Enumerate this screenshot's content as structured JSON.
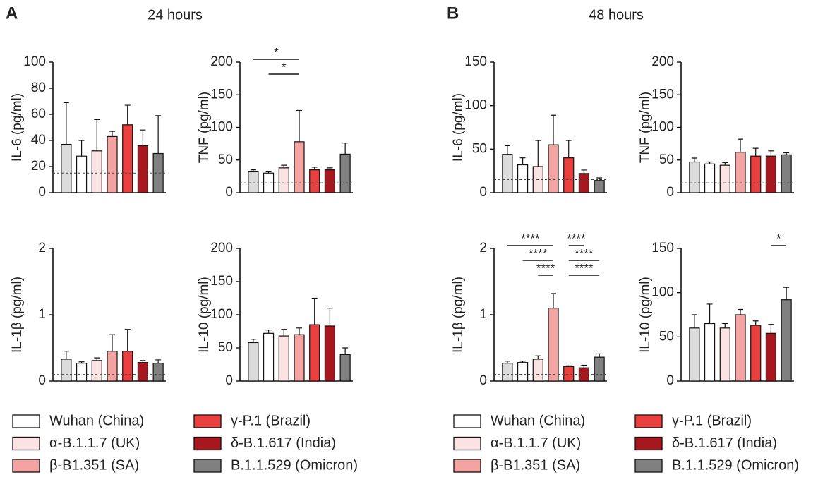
{
  "chart_data": [
    {
      "type": "bar",
      "panel_label": "A",
      "title": "24 hours",
      "bar_colors": [
        "#dcdcdc",
        "#ffffff",
        "#fbe3e3",
        "#f4a3a3",
        "#e8403f",
        "#a8171d",
        "#808080"
      ],
      "legend": [
        "Wuhan (China)",
        "α-B.1.1.7 (UK)",
        "β-B1.351 (SA)",
        "γ-P.1 (Brazil)",
        "δ-B.1.617 (India)",
        "B.1.1.529 (Omicron)"
      ],
      "subplots": [
        {
          "ylabel": "IL-6 (pg/ml)",
          "ylim": [
            0,
            100
          ],
          "yticks": [
            0,
            20,
            40,
            60,
            80,
            100
          ],
          "threshold": 15,
          "values": [
            37,
            28,
            32,
            43,
            52,
            36,
            30
          ],
          "errors": [
            32,
            12,
            24,
            4,
            15,
            12,
            29
          ],
          "annotations": []
        },
        {
          "ylabel": "TNF (pg/ml)",
          "ylim": [
            0,
            200
          ],
          "yticks": [
            0,
            50,
            100,
            150,
            200
          ],
          "threshold": 15,
          "values": [
            32,
            30,
            38,
            78,
            35,
            35,
            59
          ],
          "errors": [
            3,
            2,
            4,
            48,
            4,
            3,
            17
          ],
          "annotations": [
            {
              "label": "*",
              "from": 0,
              "to": 3
            },
            {
              "label": "*",
              "from": 1,
              "to": 3
            }
          ]
        },
        {
          "ylabel": "IL-1β (pg/ml)",
          "ylim": [
            0,
            2
          ],
          "yticks": [
            0,
            1,
            2
          ],
          "threshold": 0.1,
          "values": [
            0.33,
            0.27,
            0.31,
            0.45,
            0.45,
            0.28,
            0.27
          ],
          "errors": [
            0.12,
            0.02,
            0.04,
            0.25,
            0.33,
            0.03,
            0.05
          ],
          "annotations": []
        },
        {
          "ylabel": "IL-10 (pg/ml)",
          "ylim": [
            0,
            200
          ],
          "yticks": [
            0,
            50,
            100,
            150,
            200
          ],
          "values": [
            58,
            72,
            68,
            70,
            85,
            83,
            40
          ],
          "errors": [
            5,
            5,
            10,
            10,
            40,
            27,
            10
          ],
          "annotations": []
        }
      ]
    },
    {
      "type": "bar",
      "panel_label": "B",
      "title": "48 hours",
      "bar_colors": [
        "#dcdcdc",
        "#ffffff",
        "#fbe3e3",
        "#f4a3a3",
        "#e8403f",
        "#a8171d",
        "#808080"
      ],
      "legend": [
        "Wuhan (China)",
        "α-B.1.1.7 (UK)",
        "β-B1.351 (SA)",
        "γ-P.1 (Brazil)",
        "δ-B.1.617 (India)",
        "B.1.1.529 (Omicron)"
      ],
      "subplots": [
        {
          "ylabel": "IL-6 (pg/ml)",
          "ylim": [
            0,
            150
          ],
          "yticks": [
            0,
            50,
            100,
            150
          ],
          "threshold": 15,
          "values": [
            44,
            32,
            30,
            55,
            40,
            22,
            14
          ],
          "errors": [
            10,
            8,
            30,
            34,
            20,
            4,
            3
          ],
          "annotations": []
        },
        {
          "ylabel": "TNF (pg/ml)",
          "ylim": [
            0,
            200
          ],
          "yticks": [
            0,
            50,
            100,
            150,
            200
          ],
          "threshold": 15,
          "values": [
            47,
            44,
            42,
            62,
            56,
            56,
            58
          ],
          "errors": [
            6,
            3,
            4,
            20,
            12,
            8,
            3
          ],
          "annotations": []
        },
        {
          "ylabel": "IL-1β (pg/ml)",
          "ylim": [
            0,
            2
          ],
          "yticks": [
            0,
            1,
            2
          ],
          "threshold": 0.1,
          "values": [
            0.27,
            0.28,
            0.33,
            1.1,
            0.22,
            0.2,
            0.36
          ],
          "errors": [
            0.03,
            0.02,
            0.05,
            0.22,
            0.01,
            0.04,
            0.05
          ],
          "annotations": [
            {
              "label": "****",
              "from": 0,
              "to": 3
            },
            {
              "label": "****",
              "from": 4,
              "to": 5
            },
            {
              "label": "****",
              "from": 1,
              "to": 3
            },
            {
              "label": "****",
              "from": 4,
              "to": 6
            },
            {
              "label": "****",
              "from": 2,
              "to": 3
            },
            {
              "label": "****",
              "from": 4,
              "to": 6
            }
          ]
        },
        {
          "ylabel": "IL-10 (pg/ml)",
          "ylim": [
            0,
            150
          ],
          "yticks": [
            0,
            50,
            100,
            150
          ],
          "values": [
            60,
            65,
            60,
            75,
            63,
            54,
            92
          ],
          "errors": [
            15,
            22,
            5,
            6,
            5,
            10,
            14
          ],
          "annotations": [
            {
              "label": "*",
              "from": 5,
              "to": 6
            }
          ]
        }
      ]
    }
  ]
}
